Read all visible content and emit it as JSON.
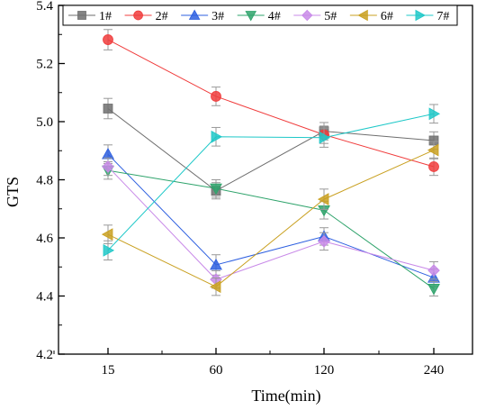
{
  "chart_data": {
    "type": "line",
    "xlabel": "Time(min)",
    "ylabel": "GTS",
    "categories": [
      "15",
      "60",
      "120",
      "240"
    ],
    "ylim": [
      4.2,
      5.4
    ],
    "yticks": [
      "4.2",
      "4.4",
      "4.6",
      "4.8",
      "5.0",
      "5.2",
      "5.4"
    ],
    "legend_position": "top",
    "error_bars": true,
    "series": [
      {
        "name": "1#",
        "marker": "square",
        "color": "#6e6e6e",
        "values": [
          5.045,
          4.762,
          4.967,
          4.935
        ],
        "errors": [
          0.035,
          0.028,
          0.03,
          0.03
        ]
      },
      {
        "name": "2#",
        "marker": "circle",
        "color": "#f03c3c",
        "values": [
          5.282,
          5.087,
          4.955,
          4.845
        ],
        "errors": [
          0.035,
          0.032,
          0.03,
          0.03
        ]
      },
      {
        "name": "3#",
        "marker": "triangle-up",
        "color": "#2d5fe0",
        "values": [
          4.888,
          4.507,
          4.605,
          4.463
        ],
        "errors": [
          0.032,
          0.035,
          0.03,
          0.03
        ]
      },
      {
        "name": "4#",
        "marker": "triangle-down",
        "color": "#2ea36b",
        "values": [
          4.832,
          4.77,
          4.695,
          4.425
        ],
        "errors": [
          0.03,
          0.03,
          0.03,
          0.025
        ]
      },
      {
        "name": "5#",
        "marker": "diamond",
        "color": "#c889e8",
        "values": [
          4.845,
          4.457,
          4.588,
          4.488
        ],
        "errors": [
          0.03,
          0.03,
          0.03,
          0.03
        ]
      },
      {
        "name": "6#",
        "marker": "triangle-left",
        "color": "#c9a020",
        "values": [
          4.612,
          4.432,
          4.733,
          4.902
        ],
        "errors": [
          0.032,
          0.03,
          0.035,
          0.03
        ]
      },
      {
        "name": "7#",
        "marker": "triangle-right",
        "color": "#1ec8c8",
        "values": [
          4.557,
          4.948,
          4.945,
          5.027
        ],
        "errors": [
          0.033,
          0.032,
          0.033,
          0.032
        ]
      }
    ]
  }
}
